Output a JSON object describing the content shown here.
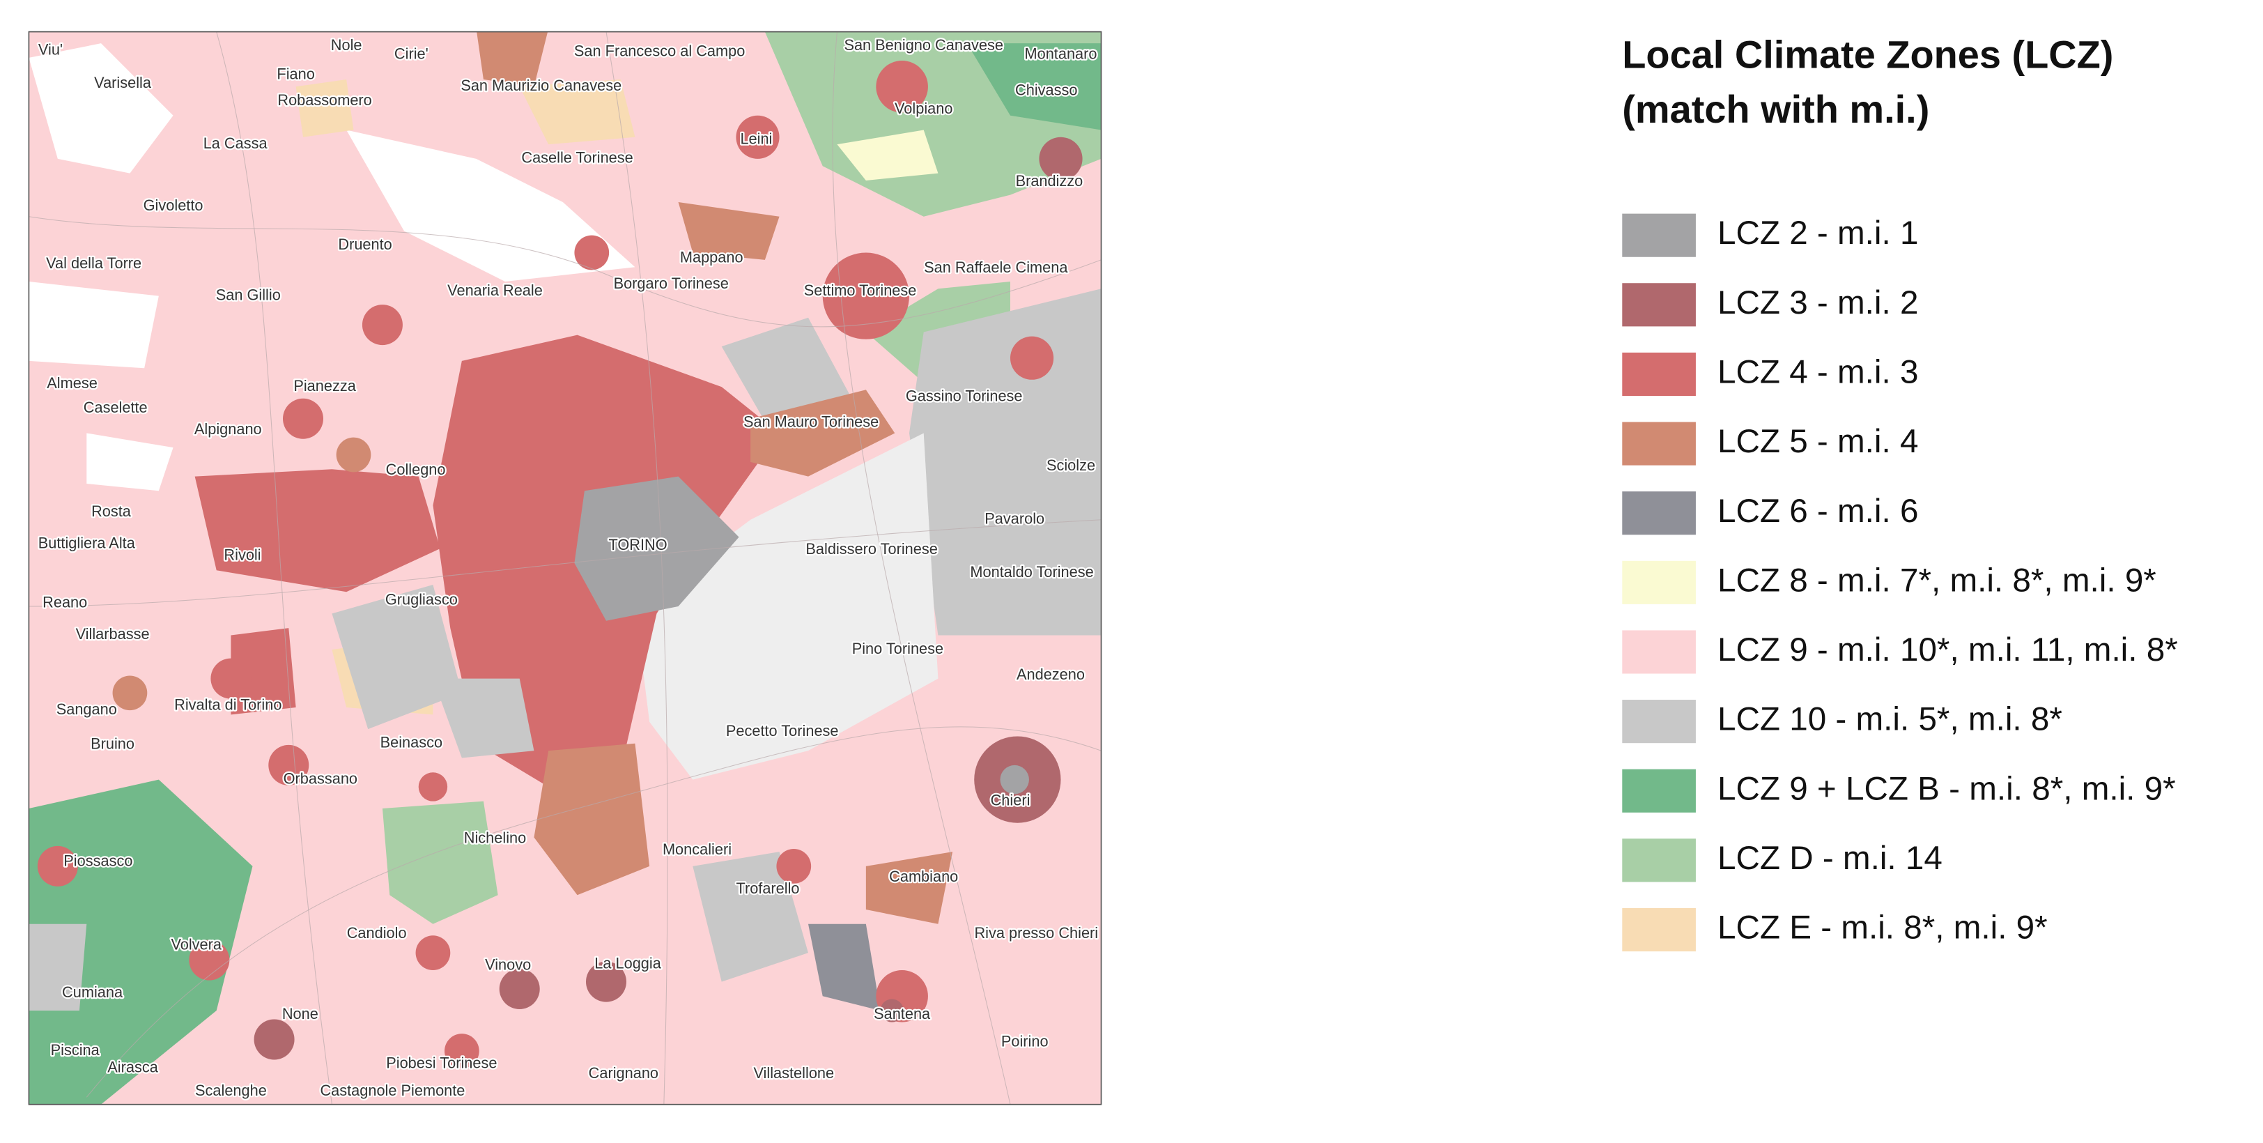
{
  "map": {
    "places": [
      "Viu'",
      "Varisella",
      "Nole",
      "Cirie'",
      "Fiano",
      "Robassomero",
      "San Francesco al Campo",
      "San Maurizio Canavese",
      "San Benigno Canavese",
      "Montanaro",
      "Volpiano",
      "Chivasso",
      "La Cassa",
      "Leini",
      "Caselle Torinese",
      "Brandizzo",
      "Givoletto",
      "Druento",
      "Mappano",
      "Val della Torre",
      "San Raffaele Cimena",
      "San Gillio",
      "Venaria Reale",
      "Borgaro Torinese",
      "Settimo Torinese",
      "Almese",
      "Pianezza",
      "Gassino Torinese",
      "Caselette",
      "Alpignano",
      "San Mauro Torinese",
      "Sciolze",
      "Collegno",
      "Rosta",
      "Pavarolo",
      "Buttigliera Alta",
      "Rivoli",
      "TORINO",
      "Baldissero Torinese",
      "Montaldo Torinese",
      "Reano",
      "Grugliasco",
      "Villarbasse",
      "Pino Torinese",
      "Andezeno",
      "Sangano",
      "Rivalta di Torino",
      "Bruino",
      "Beinasco",
      "Pecetto Torinese",
      "Orbassano",
      "Chieri",
      "Nichelino",
      "Moncalieri",
      "Piossasco",
      "Cambiano",
      "Trofarello",
      "Candiolo",
      "Riva presso Chieri",
      "Volvera",
      "Vinovo",
      "La Loggia",
      "Cumiana",
      "None",
      "Santena",
      "Poirino",
      "Piscina",
      "Airasca",
      "Piobesi Torinese",
      "Carignano",
      "Villastellone",
      "Scalenghe",
      "Castagnole Piemonte"
    ]
  },
  "legend": {
    "title": [
      "Local Climate Zones (LCZ)",
      "(match with m.i.)"
    ],
    "items": [
      {
        "label": "LCZ 2 - m.i. 1",
        "color": "#a3a3a5"
      },
      {
        "label": "LCZ 3 - m.i. 2",
        "color": "#b0686d"
      },
      {
        "label": "LCZ 4 - m.i. 3",
        "color": "#d46d6e"
      },
      {
        "label": "LCZ 5 - m.i. 4",
        "color": "#d18a72"
      },
      {
        "label": "LCZ 6 - m.i. 6",
        "color": "#8f9098"
      },
      {
        "label": "LCZ 8 - m.i. 7*, m.i. 8*, m.i. 9*",
        "color": "#fafad2"
      },
      {
        "label": "LCZ 9 - m.i. 10*, m.i. 11, m.i. 8*",
        "color": "#fcd3d6"
      },
      {
        "label": "LCZ 10 - m.i. 5*, m.i. 8*",
        "color": "#c8c8c8"
      },
      {
        "label": "LCZ 9 + LCZ B - m.i. 8*, m.i. 9*",
        "color": "#72b98a"
      },
      {
        "label": "LCZ D - m.i. 14",
        "color": "#a8cfa6"
      },
      {
        "label": "LCZ E - m.i. 8*, m.i. 9*",
        "color": "#f8dcb4"
      }
    ]
  }
}
